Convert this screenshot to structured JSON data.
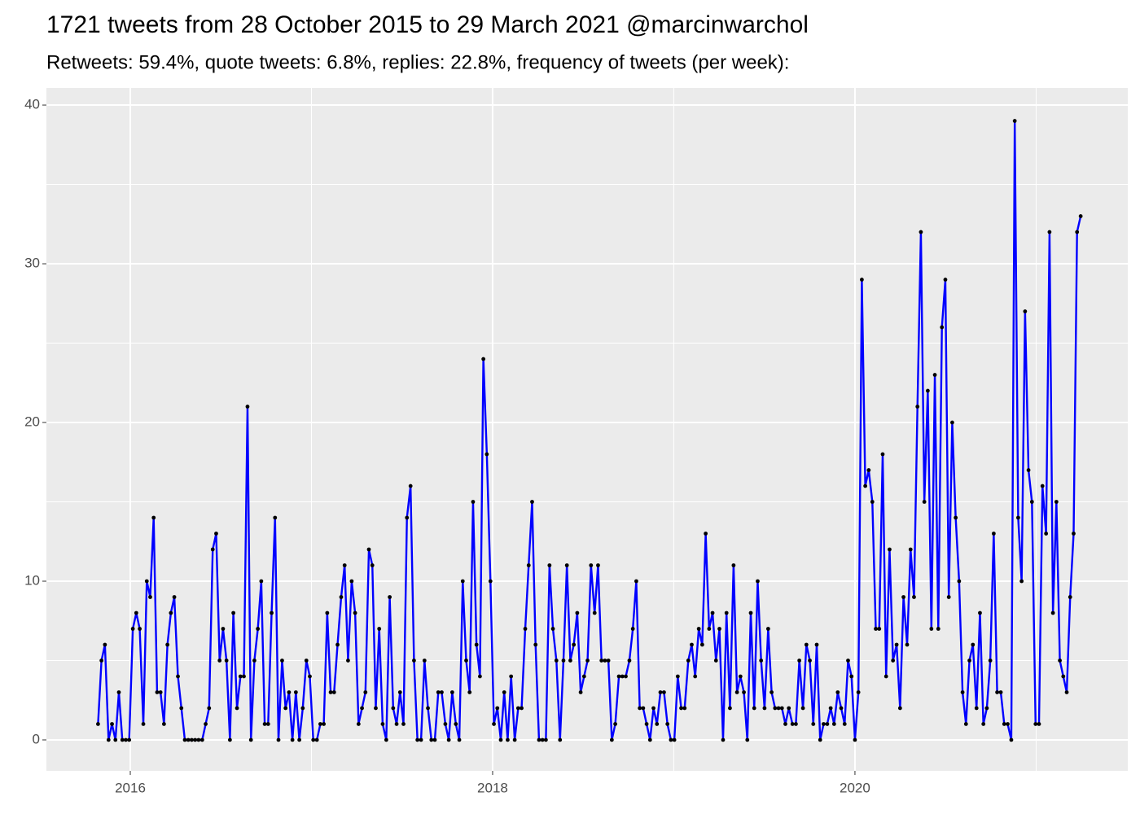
{
  "chart_data": {
    "type": "line",
    "title": "1721 tweets from 28 October 2015 to 29 March 2021 @marcinwarchol",
    "subtitle": "Retweets: 59.4%, quote tweets: 6.8%, replies: 22.8%, frequency of tweets (per week):",
    "color": "#0000ff",
    "point_color": "#000000",
    "x": [
      2015.822,
      2015.841,
      2015.86,
      2015.88,
      2015.899,
      2015.918,
      2015.937,
      2015.956,
      2015.975,
      2015.994,
      2016.014,
      2016.033,
      2016.052,
      2016.072,
      2016.091,
      2016.11,
      2016.129,
      2016.148,
      2016.167,
      2016.186,
      2016.205,
      2016.224,
      2016.243,
      2016.263,
      2016.282,
      2016.301,
      2016.32,
      2016.339,
      2016.358,
      2016.377,
      2016.397,
      2016.416,
      2016.435,
      2016.455,
      2016.474,
      2016.493,
      2016.512,
      2016.531,
      2016.55,
      2016.569,
      2016.589,
      2016.608,
      2016.627,
      2016.647,
      2016.666,
      2016.685,
      2016.704,
      2016.723,
      2016.742,
      2016.761,
      2016.78,
      2016.799,
      2016.818,
      2016.838,
      2016.857,
      2016.876,
      2016.895,
      2016.914,
      2016.933,
      2016.952,
      2016.972,
      2016.991,
      2017.01,
      2017.03,
      2017.049,
      2017.068,
      2017.087,
      2017.106,
      2017.125,
      2017.144,
      2017.164,
      2017.183,
      2017.202,
      2017.222,
      2017.241,
      2017.26,
      2017.279,
      2017.298,
      2017.317,
      2017.336,
      2017.355,
      2017.374,
      2017.393,
      2017.413,
      2017.432,
      2017.451,
      2017.47,
      2017.489,
      2017.508,
      2017.527,
      2017.547,
      2017.566,
      2017.585,
      2017.605,
      2017.624,
      2017.643,
      2017.662,
      2017.681,
      2017.7,
      2017.719,
      2017.739,
      2017.758,
      2017.777,
      2017.797,
      2017.816,
      2017.835,
      2017.854,
      2017.873,
      2017.892,
      2017.911,
      2017.93,
      2017.949,
      2017.968,
      2017.988,
      2018.007,
      2018.026,
      2018.045,
      2018.064,
      2018.083,
      2018.102,
      2018.122,
      2018.141,
      2018.16,
      2018.18,
      2018.199,
      2018.218,
      2018.237,
      2018.256,
      2018.275,
      2018.294,
      2018.314,
      2018.333,
      2018.352,
      2018.372,
      2018.391,
      2018.41,
      2018.429,
      2018.448,
      2018.467,
      2018.486,
      2018.505,
      2018.524,
      2018.543,
      2018.563,
      2018.582,
      2018.601,
      2018.62,
      2018.639,
      2018.658,
      2018.677,
      2018.697,
      2018.716,
      2018.735,
      2018.755,
      2018.774,
      2018.793,
      2018.812,
      2018.831,
      2018.85,
      2018.869,
      2018.888,
      2018.907,
      2018.926,
      2018.946,
      2018.965,
      2018.984,
      2019.003,
      2019.022,
      2019.041,
      2019.06,
      2019.08,
      2019.099,
      2019.118,
      2019.138,
      2019.157,
      2019.176,
      2019.195,
      2019.214,
      2019.233,
      2019.252,
      2019.272,
      2019.291,
      2019.31,
      2019.33,
      2019.349,
      2019.368,
      2019.387,
      2019.406,
      2019.425,
      2019.444,
      2019.463,
      2019.482,
      2019.501,
      2019.521,
      2019.54,
      2019.559,
      2019.578,
      2019.597,
      2019.616,
      2019.635,
      2019.655,
      2019.674,
      2019.693,
      2019.713,
      2019.732,
      2019.751,
      2019.77,
      2019.789,
      2019.808,
      2019.827,
      2019.847,
      2019.866,
      2019.885,
      2019.905,
      2019.924,
      2019.943,
      2019.962,
      2019.981,
      2020.0,
      2020.019,
      2020.038,
      2020.057,
      2020.076,
      2020.096,
      2020.115,
      2020.134,
      2020.153,
      2020.172,
      2020.191,
      2020.21,
      2020.23,
      2020.249,
      2020.268,
      2020.288,
      2020.307,
      2020.326,
      2020.345,
      2020.364,
      2020.383,
      2020.402,
      2020.422,
      2020.441,
      2020.46,
      2020.48,
      2020.499,
      2020.518,
      2020.537,
      2020.556,
      2020.575,
      2020.594,
      2020.613,
      2020.632,
      2020.651,
      2020.671,
      2020.69,
      2020.709,
      2020.728,
      2020.747,
      2020.766,
      2020.785,
      2020.805,
      2020.824,
      2020.843,
      2020.863,
      2020.882,
      2020.901,
      2020.92,
      2020.939,
      2020.958,
      2020.977,
      2020.997,
      2021.016,
      2021.035,
      2021.055,
      2021.074,
      2021.093,
      2021.112,
      2021.131,
      2021.15,
      2021.169,
      2021.188,
      2021.207,
      2021.226,
      2021.246
    ],
    "values": [
      1,
      5,
      6,
      0,
      1,
      0,
      3,
      0,
      0,
      0,
      7,
      8,
      7,
      1,
      10,
      9,
      14,
      3,
      3,
      1,
      6,
      8,
      9,
      4,
      2,
      0,
      0,
      0,
      0,
      0,
      0,
      1,
      2,
      12,
      13,
      5,
      7,
      5,
      0,
      8,
      2,
      4,
      4,
      21,
      0,
      5,
      7,
      10,
      1,
      1,
      8,
      14,
      0,
      5,
      2,
      3,
      0,
      3,
      0,
      2,
      5,
      4,
      0,
      0,
      1,
      1,
      8,
      3,
      3,
      6,
      9,
      11,
      5,
      10,
      8,
      1,
      2,
      3,
      12,
      11,
      2,
      7,
      1,
      0,
      9,
      2,
      1,
      3,
      1,
      14,
      16,
      5,
      0,
      0,
      5,
      2,
      0,
      0,
      3,
      3,
      1,
      0,
      3,
      1,
      0,
      10,
      5,
      3,
      15,
      6,
      4,
      24,
      18,
      10,
      1,
      2,
      0,
      3,
      0,
      4,
      0,
      2,
      2,
      7,
      11,
      15,
      6,
      0,
      0,
      0,
      11,
      7,
      5,
      0,
      5,
      11,
      5,
      6,
      8,
      3,
      4,
      5,
      11,
      8,
      11,
      5,
      5,
      5,
      0,
      1,
      4,
      4,
      4,
      5,
      7,
      10,
      2,
      2,
      1,
      0,
      2,
      1,
      3,
      3,
      1,
      0,
      0,
      4,
      2,
      2,
      5,
      6,
      4,
      7,
      6,
      13,
      7,
      8,
      5,
      7,
      0,
      8,
      2,
      11,
      3,
      4,
      3,
      0,
      8,
      2,
      10,
      5,
      2,
      7,
      3,
      2,
      2,
      2,
      1,
      2,
      1,
      1,
      5,
      2,
      6,
      5,
      1,
      6,
      0,
      1,
      1,
      2,
      1,
      3,
      2,
      1,
      5,
      4,
      0,
      3,
      29,
      16,
      17,
      15,
      7,
      7,
      18,
      4,
      12,
      5,
      6,
      2,
      9,
      6,
      12,
      9,
      21,
      32,
      15,
      22,
      7,
      23,
      7,
      26,
      29,
      9,
      20,
      14,
      10,
      3,
      1,
      5,
      6,
      2,
      8,
      1,
      2,
      5,
      13,
      3,
      3,
      1,
      1,
      0,
      39,
      14,
      10,
      27,
      17,
      15,
      1,
      1,
      16,
      13,
      32,
      8,
      15,
      5,
      4,
      3,
      9,
      13,
      32,
      33
    ],
    "xlim": [
      2015.537,
      2021.506
    ],
    "xticks": [
      2016,
      2018,
      2020
    ],
    "xminor": [
      2017,
      2019,
      2021
    ],
    "ylim": [
      -1.95,
      41.08
    ],
    "yticks": [
      0,
      10,
      20,
      30,
      40
    ],
    "yminor": [
      5,
      15,
      25,
      35
    ],
    "grid": true
  }
}
